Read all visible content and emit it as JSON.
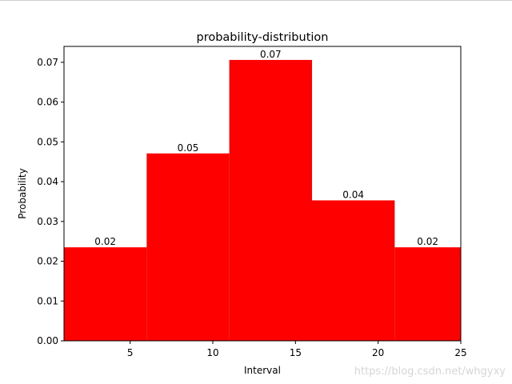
{
  "chart_data": {
    "type": "bar",
    "title": "probability-distribution",
    "xlabel": "Interval",
    "ylabel": "Probability",
    "xlim": [
      1,
      25
    ],
    "ylim": [
      0,
      0.074
    ],
    "bar_color": "#ff0000",
    "bins": [
      {
        "x0": 1,
        "x1": 6,
        "value": 0.0235,
        "label": "0.02"
      },
      {
        "x0": 6,
        "x1": 11,
        "value": 0.0471,
        "label": "0.05"
      },
      {
        "x0": 11,
        "x1": 16,
        "value": 0.0706,
        "label": "0.07"
      },
      {
        "x0": 16,
        "x1": 21,
        "value": 0.0353,
        "label": "0.04"
      },
      {
        "x0": 21,
        "x1": 25,
        "value": 0.0235,
        "label": "0.02"
      }
    ],
    "x_ticks": [
      {
        "value": 5,
        "label": "5"
      },
      {
        "value": 10,
        "label": "10"
      },
      {
        "value": 15,
        "label": "15"
      },
      {
        "value": 20,
        "label": "20"
      },
      {
        "value": 25,
        "label": "25"
      }
    ],
    "y_ticks": [
      {
        "value": 0,
        "label": "0.00"
      },
      {
        "value": 0.01,
        "label": "0.01"
      },
      {
        "value": 0.02,
        "label": "0.02"
      },
      {
        "value": 0.03,
        "label": "0.03"
      },
      {
        "value": 0.04,
        "label": "0.04"
      },
      {
        "value": 0.05,
        "label": "0.05"
      },
      {
        "value": 0.06,
        "label": "0.06"
      },
      {
        "value": 0.07,
        "label": "0.07"
      }
    ],
    "grid": false,
    "legend": "none"
  },
  "watermark": "https://blog.csdn.net/whgyxy"
}
